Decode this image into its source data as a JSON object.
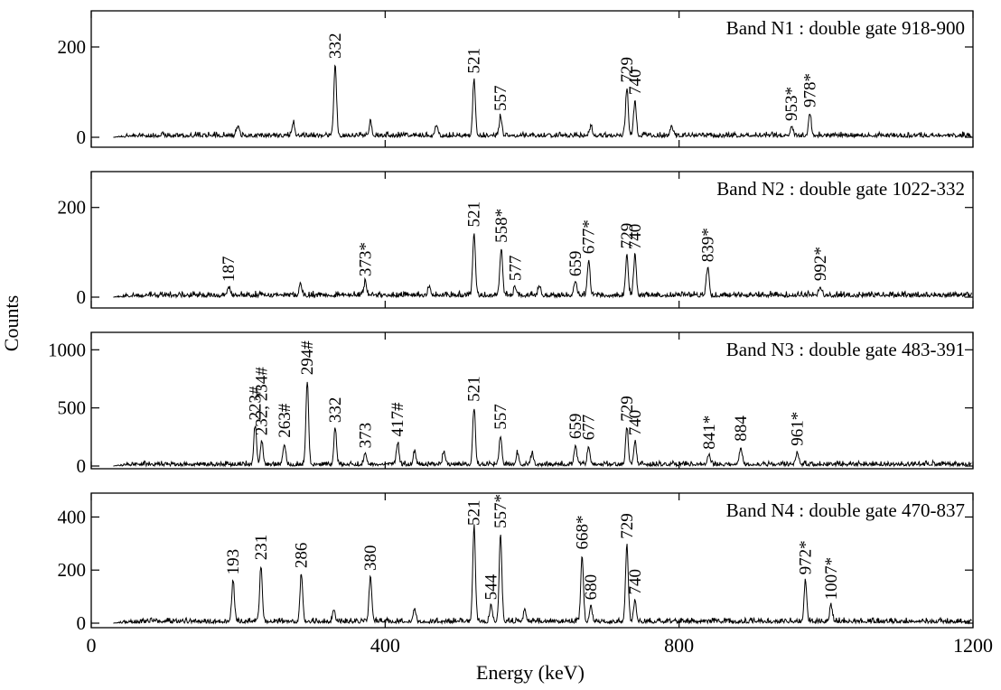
{
  "figure": {
    "ylabel": "Counts",
    "xlabel": "Energy (keV)",
    "xlim": [
      0,
      1200
    ],
    "xticks": [
      "0",
      "400",
      "800",
      "1200"
    ],
    "xtick_values": [
      0,
      400,
      800,
      1200
    ]
  },
  "chart_data": [
    {
      "type": "line",
      "title": "Band N1 : double gate 918-900",
      "ylim": [
        0,
        280
      ],
      "yticks": [
        0,
        200
      ],
      "noise_level": 8,
      "peaks": [
        {
          "x": 332,
          "y": 158,
          "label": "332"
        },
        {
          "x": 521,
          "y": 125,
          "label": "521"
        },
        {
          "x": 557,
          "y": 42,
          "label": "557"
        },
        {
          "x": 729,
          "y": 105,
          "label": "729"
        },
        {
          "x": 740,
          "y": 78,
          "label": "740"
        },
        {
          "x": 953,
          "y": 20,
          "label": "953*"
        },
        {
          "x": 978,
          "y": 50,
          "label": "978*"
        },
        {
          "x": 380,
          "y": 30
        },
        {
          "x": 275,
          "y": 30
        },
        {
          "x": 470,
          "y": 25
        },
        {
          "x": 200,
          "y": 25
        },
        {
          "x": 680,
          "y": 20
        },
        {
          "x": 790,
          "y": 22
        }
      ]
    },
    {
      "type": "line",
      "title": "Band N2 : double gate 1022-332",
      "ylim": [
        0,
        280
      ],
      "yticks": [
        0,
        200
      ],
      "noise_level": 9,
      "peaks": [
        {
          "x": 187,
          "y": 18,
          "label": "187"
        },
        {
          "x": 373,
          "y": 30,
          "label": "373*"
        },
        {
          "x": 521,
          "y": 140,
          "label": "521"
        },
        {
          "x": 558,
          "y": 105,
          "label": "558*"
        },
        {
          "x": 577,
          "y": 20,
          "label": "577"
        },
        {
          "x": 659,
          "y": 30,
          "label": "659"
        },
        {
          "x": 677,
          "y": 80,
          "label": "677*"
        },
        {
          "x": 729,
          "y": 92,
          "label": "729"
        },
        {
          "x": 740,
          "y": 90,
          "label": "740"
        },
        {
          "x": 839,
          "y": 62,
          "label": "839*"
        },
        {
          "x": 992,
          "y": 20,
          "label": "992*"
        },
        {
          "x": 285,
          "y": 25
        },
        {
          "x": 460,
          "y": 20
        },
        {
          "x": 610,
          "y": 22
        }
      ]
    },
    {
      "type": "line",
      "title": "Band N3 : double gate 483-391",
      "ylim": [
        0,
        1150
      ],
      "yticks": [
        0,
        500,
        1000
      ],
      "noise_level": 30,
      "peaks": [
        {
          "x": 223,
          "y": 330,
          "label": "223#"
        },
        {
          "x": 232,
          "y": 200,
          "label": "232, 234#"
        },
        {
          "x": 263,
          "y": 180,
          "label": "263#"
        },
        {
          "x": 294,
          "y": 720,
          "label": "294#"
        },
        {
          "x": 332,
          "y": 310,
          "label": "332"
        },
        {
          "x": 373,
          "y": 90,
          "label": "373"
        },
        {
          "x": 417,
          "y": 190,
          "label": "417#"
        },
        {
          "x": 521,
          "y": 490,
          "label": "521"
        },
        {
          "x": 557,
          "y": 250,
          "label": "557"
        },
        {
          "x": 659,
          "y": 170,
          "label": "659"
        },
        {
          "x": 677,
          "y": 160,
          "label": "677"
        },
        {
          "x": 729,
          "y": 320,
          "label": "729"
        },
        {
          "x": 740,
          "y": 200,
          "label": "740"
        },
        {
          "x": 841,
          "y": 80,
          "label": "841*"
        },
        {
          "x": 884,
          "y": 150,
          "label": "884"
        },
        {
          "x": 961,
          "y": 110,
          "label": "961*"
        },
        {
          "x": 440,
          "y": 120
        },
        {
          "x": 480,
          "y": 110
        },
        {
          "x": 580,
          "y": 100
        },
        {
          "x": 600,
          "y": 90
        }
      ]
    },
    {
      "type": "line",
      "title": "Band N4 : double gate 470-837",
      "ylim": [
        0,
        490
      ],
      "yticks": [
        0,
        200,
        400
      ],
      "noise_level": 14,
      "peaks": [
        {
          "x": 193,
          "y": 155,
          "label": "193"
        },
        {
          "x": 231,
          "y": 210,
          "label": "231"
        },
        {
          "x": 286,
          "y": 180,
          "label": "286"
        },
        {
          "x": 380,
          "y": 170,
          "label": "380"
        },
        {
          "x": 521,
          "y": 360,
          "label": "521"
        },
        {
          "x": 544,
          "y": 60,
          "label": "544"
        },
        {
          "x": 557,
          "y": 330,
          "label": "557*"
        },
        {
          "x": 668,
          "y": 250,
          "label": "668*"
        },
        {
          "x": 680,
          "y": 60,
          "label": "680"
        },
        {
          "x": 729,
          "y": 290,
          "label": "729"
        },
        {
          "x": 740,
          "y": 80,
          "label": "740"
        },
        {
          "x": 972,
          "y": 155,
          "label": "972*"
        },
        {
          "x": 1007,
          "y": 60,
          "label": "1007*"
        },
        {
          "x": 440,
          "y": 50
        },
        {
          "x": 330,
          "y": 40
        },
        {
          "x": 590,
          "y": 40
        }
      ]
    }
  ]
}
